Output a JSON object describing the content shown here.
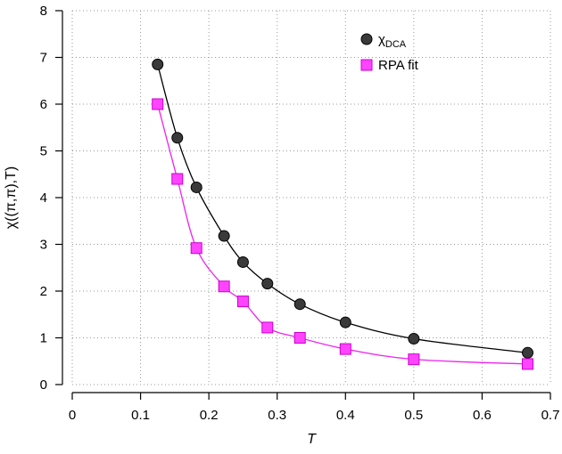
{
  "chart_data": {
    "type": "scatter",
    "xlabel": "T",
    "ylabel": "χ((π,π),T)",
    "xlim": [
      0,
      0.7
    ],
    "ylim": [
      0,
      8
    ],
    "xticks": [
      0,
      0.1,
      0.2,
      0.3,
      0.4,
      0.5,
      0.6,
      0.7
    ],
    "xtick_labels": [
      "0",
      "0.1",
      "0.2",
      "0.3",
      "0.4",
      "0.5",
      "0.6",
      "0.7"
    ],
    "yticks": [
      0,
      1,
      2,
      3,
      4,
      5,
      6,
      7,
      8
    ],
    "ytick_labels": [
      "0",
      "1",
      "2",
      "3",
      "4",
      "5",
      "6",
      "7",
      "8"
    ],
    "grid": true,
    "legend_position": "top-right",
    "series": [
      {
        "name": "χ",
        "name_subscript": "DCA",
        "marker": "circle",
        "color": "#3a3a3a",
        "line_color": "#000000",
        "x": [
          0.125,
          0.1538,
          0.1818,
          0.2222,
          0.25,
          0.2857,
          0.3333,
          0.4,
          0.5,
          0.6667
        ],
        "y": [
          6.85,
          5.28,
          4.22,
          3.18,
          2.62,
          2.16,
          1.72,
          1.33,
          0.98,
          0.68
        ]
      },
      {
        "name": "RPA fit",
        "marker": "square",
        "color": "#ff44ff",
        "line_color": "#ee22ee",
        "x": [
          0.125,
          0.1538,
          0.1818,
          0.2222,
          0.25,
          0.2857,
          0.3333,
          0.4,
          0.5,
          0.6667
        ],
        "y": [
          6.0,
          4.4,
          2.92,
          2.1,
          1.78,
          1.22,
          1.0,
          0.76,
          0.54,
          0.44
        ]
      }
    ]
  }
}
